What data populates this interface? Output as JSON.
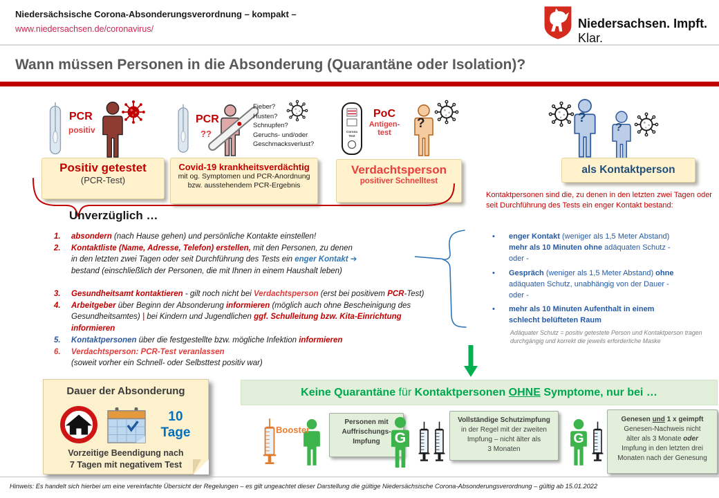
{
  "header": {
    "title": "Niedersächsische Corona-Absonderungsverordnung – kompakt –",
    "url": "www.niedersachsen.de/coronavirus/",
    "logo_bold": "Niedersachsen. Impft.",
    "logo_regular": "Klar."
  },
  "page_title": "Wann müssen Personen in die Absonderung (Quarantäne oder Isolation)?",
  "glyphs": {
    "bullet": "•",
    "arrow_right": "➔",
    "question_mark": "?",
    "g_label": "G"
  },
  "cases": {
    "pcr_positive": {
      "test_label": "PCR",
      "test_sub": "positiv",
      "box_title": "Positiv getestet",
      "box_sub": "(PCR-Test)"
    },
    "pcr_pending": {
      "test_label": "PCR",
      "test_sub": "??",
      "symptoms": [
        "Fieber?",
        "Husten?",
        "Schnupfen?",
        "Geruchs- und/oder",
        "Geschmacksverlust?"
      ],
      "box_title": "Covid-19 krankheitsverdächtig",
      "box_sub1": "mit og. Symptomen und PCR-Anordnung",
      "box_sub2": "bzw. ausstehendem PCR-Ergebnis"
    },
    "poc": {
      "test_label": "PoC",
      "test_sub1": "Antigen-",
      "test_sub2": "test",
      "box_title": "Verdachtsperson",
      "box_sub": "positiver Schnelltest"
    },
    "contact": {
      "box_title": "als Kontaktperson"
    }
  },
  "immediately": {
    "heading": "Unverzüglich …",
    "items": [
      {
        "num": "1.",
        "num_c": "nc-dr",
        "segs": [
          {
            "t": "absondern ",
            "c": "dr"
          },
          {
            "t": "(nach Hause gehen) und persönliche Kontakte einstellen!"
          }
        ]
      },
      {
        "num": "2.",
        "num_c": "nc-dr",
        "segs": [
          {
            "t": "Kontaktliste (Name, Adresse, Telefon) erstellen,",
            "c": "dr"
          },
          {
            "t": " mit den Personen, zu denen"
          },
          {
            "br": true
          },
          {
            "t": "in den letzten zwei Tagen oder seit Durchführung des Tests ein "
          },
          {
            "t": "enger Kontakt ",
            "c": "bl"
          },
          {
            "t": "➔",
            "c": "ar"
          },
          {
            "br": true
          },
          {
            "t": "bestand (einschließlich der Personen, die mit Ihnen in einem Haushalt leben)"
          }
        ]
      },
      {
        "num": "3.",
        "num_c": "nc-dr",
        "segs": [
          {
            "t": "Gesundheitsamt kontaktieren",
            "c": "dr"
          },
          {
            "t": " - gilt noch nicht bei "
          },
          {
            "t": "Verdachtsperson",
            "c": "r"
          },
          {
            "t": " (erst bei positivem "
          },
          {
            "t": "PCR",
            "c": "dr"
          },
          {
            "t": "-Test)"
          }
        ]
      },
      {
        "num": "4.",
        "num_c": "nc-dr",
        "segs": [
          {
            "t": "Arbeitgeber ",
            "c": "dr"
          },
          {
            "t": "über Beginn der Absonderung "
          },
          {
            "t": "informieren ",
            "c": "dr"
          },
          {
            "t": "(möglich auch ohne Bescheinigung des"
          },
          {
            "br": true
          },
          {
            "t": "Gesundheitsamtes) "
          },
          {
            "t": "| ",
            "c": "r"
          },
          {
            "t": "bei Kindern und Jugendlichen "
          },
          {
            "t": "ggf. Schulleitung bzw. Kita-Einrichtung",
            "c": "dr"
          },
          {
            "br": true
          },
          {
            "t": "informieren",
            "c": "dr"
          }
        ]
      },
      {
        "num": "5.",
        "num_c": "nc-b",
        "segs": [
          {
            "t": "Kontaktpersonen ",
            "c": "b"
          },
          {
            "t": "über die festgestellte bzw. mögliche Infektion "
          },
          {
            "t": "informieren",
            "c": "dr"
          }
        ]
      },
      {
        "num": "6.",
        "num_c": "nc-r",
        "segs": [
          {
            "t": "Verdachtsperson: PCR-Test veranlassen",
            "c": "r"
          },
          {
            "br": true
          },
          {
            "t": "(soweit vorher ein Schnell- oder Selbsttest positiv war)"
          }
        ]
      }
    ]
  },
  "contact_info": {
    "intro": "Kontaktpersonen sind die, zu denen in den letzten zwei Tagen oder seit Durchführung des Tests ein enger Kontakt bestand:",
    "bullets": [
      {
        "segs": [
          {
            "t": "enger Kontakt ",
            "c": "bd"
          },
          {
            "t": "(weniger als 1,5 Meter Abstand)"
          },
          {
            "br": true
          },
          {
            "t": "mehr als 10 Minuten ohne ",
            "c": "bd"
          },
          {
            "t": "adäquaten Schutz -"
          },
          {
            "br": true
          },
          {
            "t": "oder -"
          }
        ]
      },
      {
        "segs": [
          {
            "t": "Gespräch ",
            "c": "bd"
          },
          {
            "t": "(weniger als 1,5 Meter Abstand) "
          },
          {
            "t": "ohne",
            "c": "bd"
          },
          {
            "br": true
          },
          {
            "t": "adäquaten Schutz, unabhängig von der Dauer -"
          },
          {
            "br": true
          },
          {
            "t": "oder -"
          }
        ]
      },
      {
        "segs": [
          {
            "t": "mehr als 10 Minuten Aufenthalt in einem",
            "c": "bd"
          },
          {
            "br": true
          },
          {
            "t": "schlecht belüfteten Raum",
            "c": "bd"
          }
        ]
      }
    ],
    "footnote": "Adäquater Schutz = positiv getestete Person und Kontaktperson tragen durchgängig und korrekt die jeweils erforderliche Maske"
  },
  "duration_box": {
    "title": "Dauer der Absonderung",
    "days_value": "10",
    "days_unit": "Tage",
    "note1": "Vorzeitige Beendigung nach",
    "note2": "7 Tagen mit negativem Test"
  },
  "banner": {
    "segs": [
      {
        "t": "Keine Quarantäne ",
        "c": "bd"
      },
      {
        "t": "für "
      },
      {
        "t": "Kontaktpersonen ",
        "c": "bd"
      },
      {
        "t": "OHNE",
        "c": "bd un"
      },
      {
        "t": " Symptome, nur bei …",
        "c": "bd"
      }
    ]
  },
  "exemptions": {
    "booster_label": "Booster",
    "box1": {
      "segs": [
        {
          "t": "Personen mit",
          "c": "bd"
        },
        {
          "br": true
        },
        {
          "t": "Auffrischungs-",
          "c": "bd"
        },
        {
          "br": true
        },
        {
          "t": "Impfung",
          "c": "bd"
        }
      ]
    },
    "box2": {
      "segs": [
        {
          "t": "Vollständige Schutzimpfung",
          "c": "bd"
        },
        {
          "br": true
        },
        {
          "t": "in der Regel mit der zweiten"
        },
        {
          "br": true
        },
        {
          "t": "Impfung – nicht älter als"
        },
        {
          "br": true
        },
        {
          "t": "3 Monaten"
        }
      ]
    },
    "box3": {
      "segs": [
        {
          "t": "Genesen ",
          "c": "bd"
        },
        {
          "t": "und",
          "c": "bd un"
        },
        {
          "t": " 1 x geimpft",
          "c": "bd"
        },
        {
          "br": true
        },
        {
          "t": "Genesen-Nachweis nicht"
        },
        {
          "br": true
        },
        {
          "t": "älter als 3 Monate "
        },
        {
          "t": "oder",
          "c": "bd it"
        },
        {
          "br": true
        },
        {
          "t": "Impfung in den letzten drei"
        },
        {
          "br": true
        },
        {
          "t": "Monaten nach der Genesung"
        }
      ]
    }
  },
  "footer": "Hinweis: Es handelt sich hierbei um eine vereinfachte Übersicht der Regelungen – es gilt ungeachtet dieser Darstellung die gültige Niedersächsische Corona-Absonderungsverordnung – gültig ab 15.01.2022"
}
